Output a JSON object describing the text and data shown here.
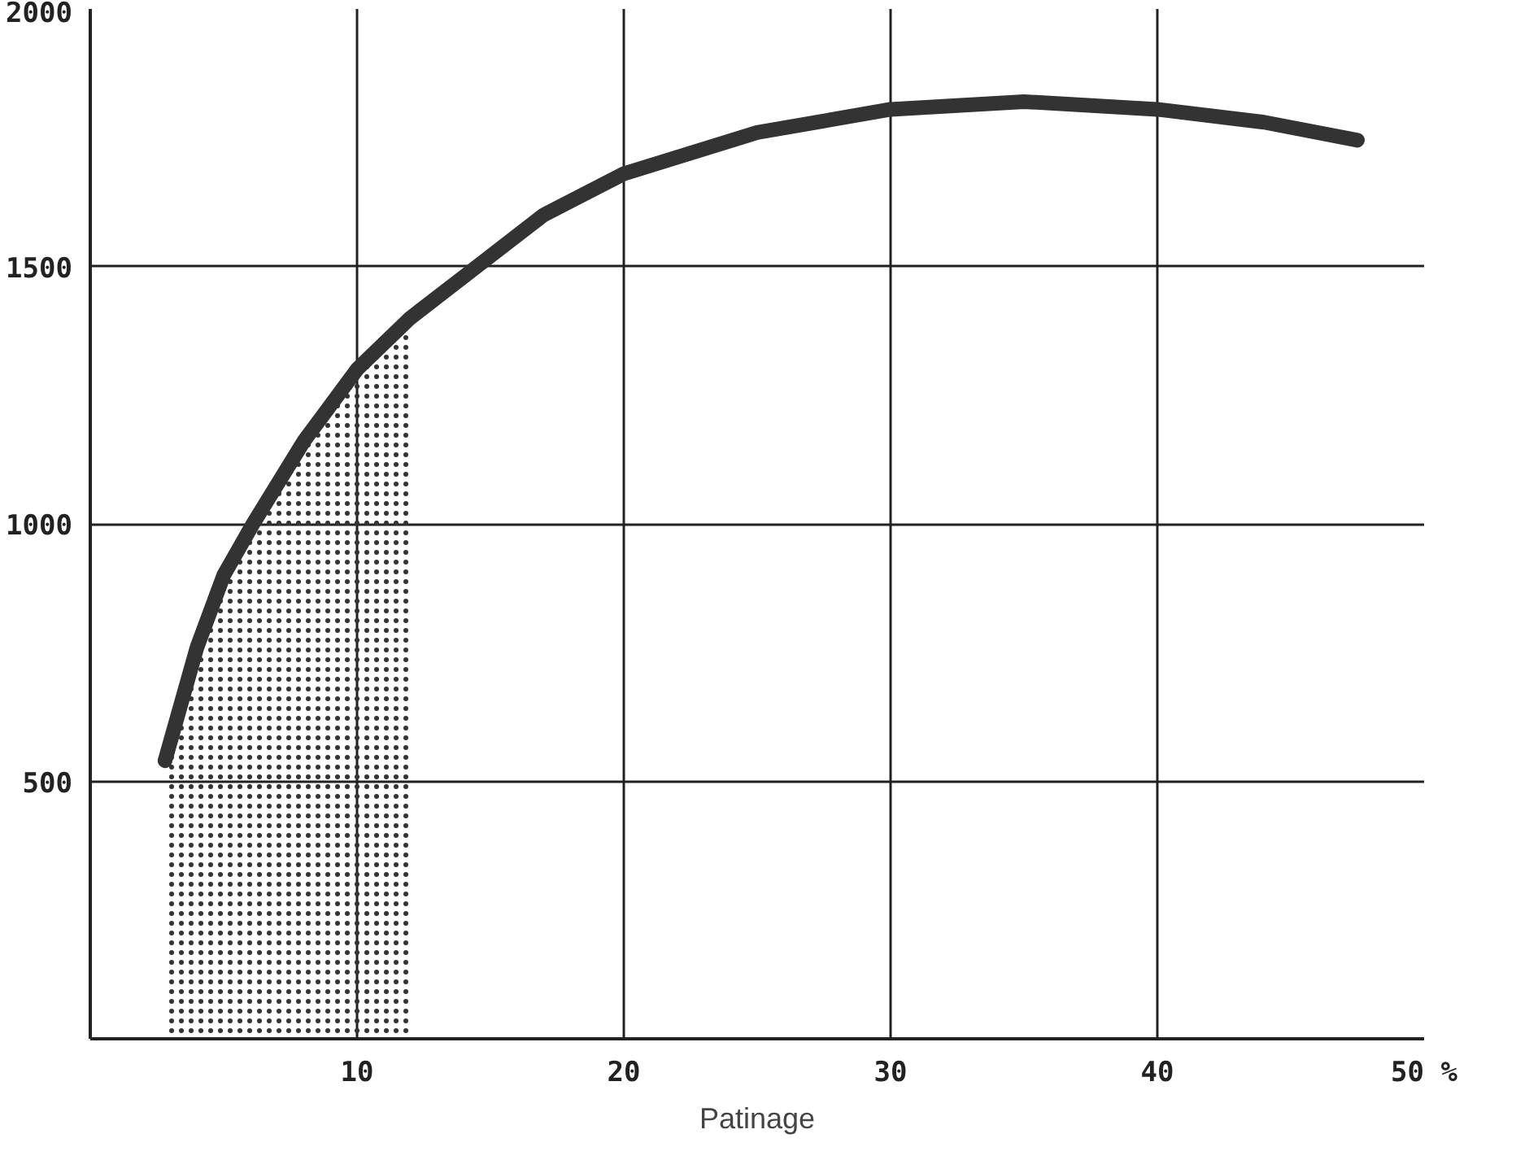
{
  "chart_data": {
    "type": "line",
    "xlabel": "Patinage",
    "xlim": [
      0,
      50
    ],
    "ylim": [
      0,
      2000
    ],
    "xticks": [
      10,
      20,
      30,
      40,
      {
        "value": 50,
        "label": "50 %"
      }
    ],
    "yticks": [
      500,
      1000,
      1500,
      2000
    ],
    "grid": true,
    "marker": "none",
    "line_style": "solid",
    "series": [
      {
        "type": "area",
        "color": "#333333",
        "x": [
          2.8,
          4,
          5,
          6.1,
          8,
          10,
          12
        ],
        "values": [
          540,
          760,
          900,
          1000,
          1160,
          1300,
          1400
        ]
      },
      {
        "color": "#333333",
        "x": [
          2.8,
          4,
          5,
          6.1,
          8,
          10,
          12,
          14.5,
          17,
          20,
          25,
          30,
          35,
          40,
          44,
          47.5
        ],
        "values": [
          540,
          760,
          900,
          1000,
          1160,
          1300,
          1400,
          1500,
          1600,
          1680,
          1760,
          1805,
          1820,
          1805,
          1780,
          1745
        ]
      }
    ]
  }
}
